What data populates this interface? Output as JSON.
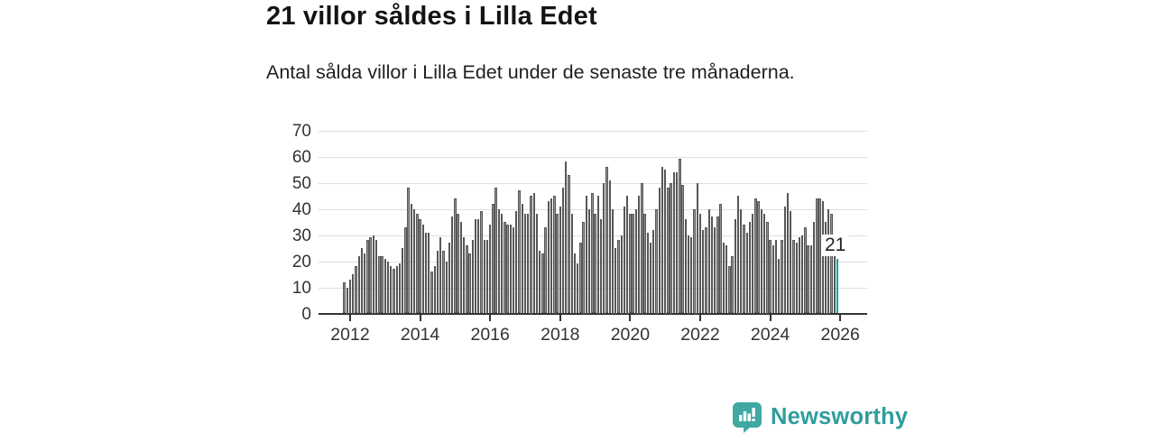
{
  "title": "21 villor såldes i Lilla Edet",
  "subtitle": "Antal sålda villor i Lilla Edet under de senaste tre månaderna.",
  "chart_data": {
    "type": "bar",
    "title": "21 villor såldes i Lilla Edet",
    "xlabel": "",
    "ylabel": "",
    "ylim": [
      0,
      70
    ],
    "y_ticks": [
      0,
      10,
      20,
      30,
      40,
      50,
      60,
      70
    ],
    "x_ticks": [
      "2012",
      "2014",
      "2016",
      "2018",
      "2020",
      "2022",
      "2024",
      "2026"
    ],
    "grid": true,
    "bar_color": "#8f8f8f",
    "highlight_color": "#00a39e",
    "annotation_label": "21",
    "values": [
      12,
      10,
      13,
      15,
      18,
      22,
      25,
      23,
      28,
      29,
      30,
      28,
      22,
      22,
      21,
      20,
      18,
      17,
      18,
      19,
      25,
      33,
      48,
      42,
      40,
      38,
      36,
      34,
      31,
      31,
      16,
      18,
      24,
      29,
      24,
      20,
      27,
      37,
      44,
      38,
      35,
      29,
      26,
      23,
      28,
      36,
      36,
      39,
      28,
      28,
      34,
      42,
      48,
      40,
      38,
      35,
      34,
      34,
      33,
      39,
      47,
      42,
      38,
      38,
      45,
      46,
      38,
      24,
      23,
      33,
      43,
      44,
      45,
      38,
      41,
      48,
      58,
      53,
      38,
      23,
      19,
      27,
      35,
      45,
      40,
      46,
      38,
      45,
      36,
      50,
      56,
      51,
      40,
      25,
      28,
      30,
      41,
      45,
      38,
      38,
      40,
      45,
      50,
      38,
      31,
      27,
      32,
      40,
      48,
      56,
      55,
      48,
      50,
      54,
      54,
      59,
      49,
      36,
      30,
      29,
      40,
      50,
      38,
      32,
      33,
      40,
      37,
      33,
      37,
      42,
      27,
      26,
      18,
      22,
      36,
      45,
      40,
      34,
      31,
      35,
      38,
      44,
      43,
      40,
      38,
      35,
      28,
      26,
      28,
      21,
      28,
      41,
      46,
      39,
      28,
      27,
      29,
      30,
      33,
      26,
      26,
      35,
      44,
      44,
      43,
      35,
      40,
      38,
      27,
      21
    ]
  },
  "branding": {
    "logo_text": "Newsworthy",
    "logo_color": "#2f9e9c",
    "logo_icon": "newsworthy-chart-bubble-icon",
    "logo_icon_color": "#3fa8a2"
  }
}
